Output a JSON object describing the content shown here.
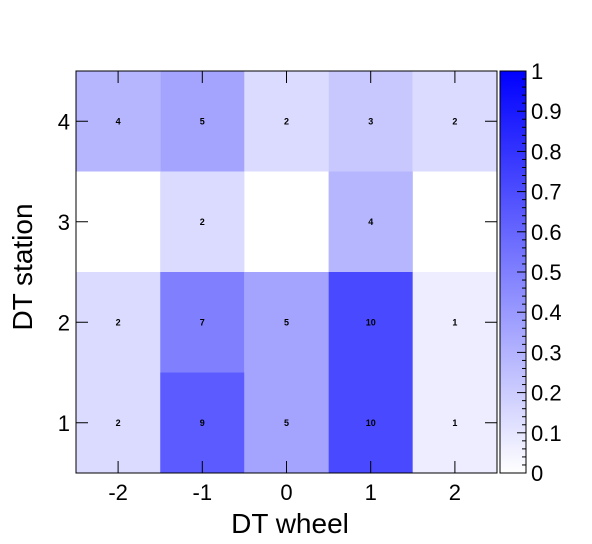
{
  "chart_data": {
    "type": "heatmap",
    "xlabel": "DT wheel",
    "ylabel": "DT station",
    "x_categories": [
      "-2",
      "-1",
      "0",
      "1",
      "2"
    ],
    "y_categories": [
      "1",
      "2",
      "3",
      "4"
    ],
    "cells": [
      {
        "x": "-2",
        "y": "1",
        "value": 2,
        "label": "2"
      },
      {
        "x": "-1",
        "y": "1",
        "value": 9,
        "label": "9"
      },
      {
        "x": "0",
        "y": "1",
        "value": 5,
        "label": "5"
      },
      {
        "x": "1",
        "y": "1",
        "value": 10,
        "label": "10"
      },
      {
        "x": "2",
        "y": "1",
        "value": 1,
        "label": "1"
      },
      {
        "x": "-2",
        "y": "2",
        "value": 2,
        "label": "2"
      },
      {
        "x": "-1",
        "y": "2",
        "value": 7,
        "label": "7"
      },
      {
        "x": "0",
        "y": "2",
        "value": 5,
        "label": "5"
      },
      {
        "x": "1",
        "y": "2",
        "value": 10,
        "label": "10"
      },
      {
        "x": "2",
        "y": "2",
        "value": 1,
        "label": "1"
      },
      {
        "x": "-1",
        "y": "3",
        "value": 2,
        "label": "2"
      },
      {
        "x": "1",
        "y": "3",
        "value": 4,
        "label": "4"
      },
      {
        "x": "-2",
        "y": "4",
        "value": 4,
        "label": "4"
      },
      {
        "x": "-1",
        "y": "4",
        "value": 5,
        "label": "5"
      },
      {
        "x": "0",
        "y": "4",
        "value": 2,
        "label": "2"
      },
      {
        "x": "1",
        "y": "4",
        "value": 3,
        "label": "3"
      },
      {
        "x": "2",
        "y": "4",
        "value": 2,
        "label": "2"
      }
    ],
    "value_max": 14,
    "colorbar": {
      "range": [
        0,
        1
      ],
      "ticks": [
        "0",
        "0.1",
        "0.2",
        "0.3",
        "0.4",
        "0.5",
        "0.6",
        "0.7",
        "0.8",
        "0.9",
        "1"
      ],
      "color_low": "#ffffff",
      "color_high": "#0000ff"
    },
    "grid": false,
    "legend": "colorbar-right"
  }
}
